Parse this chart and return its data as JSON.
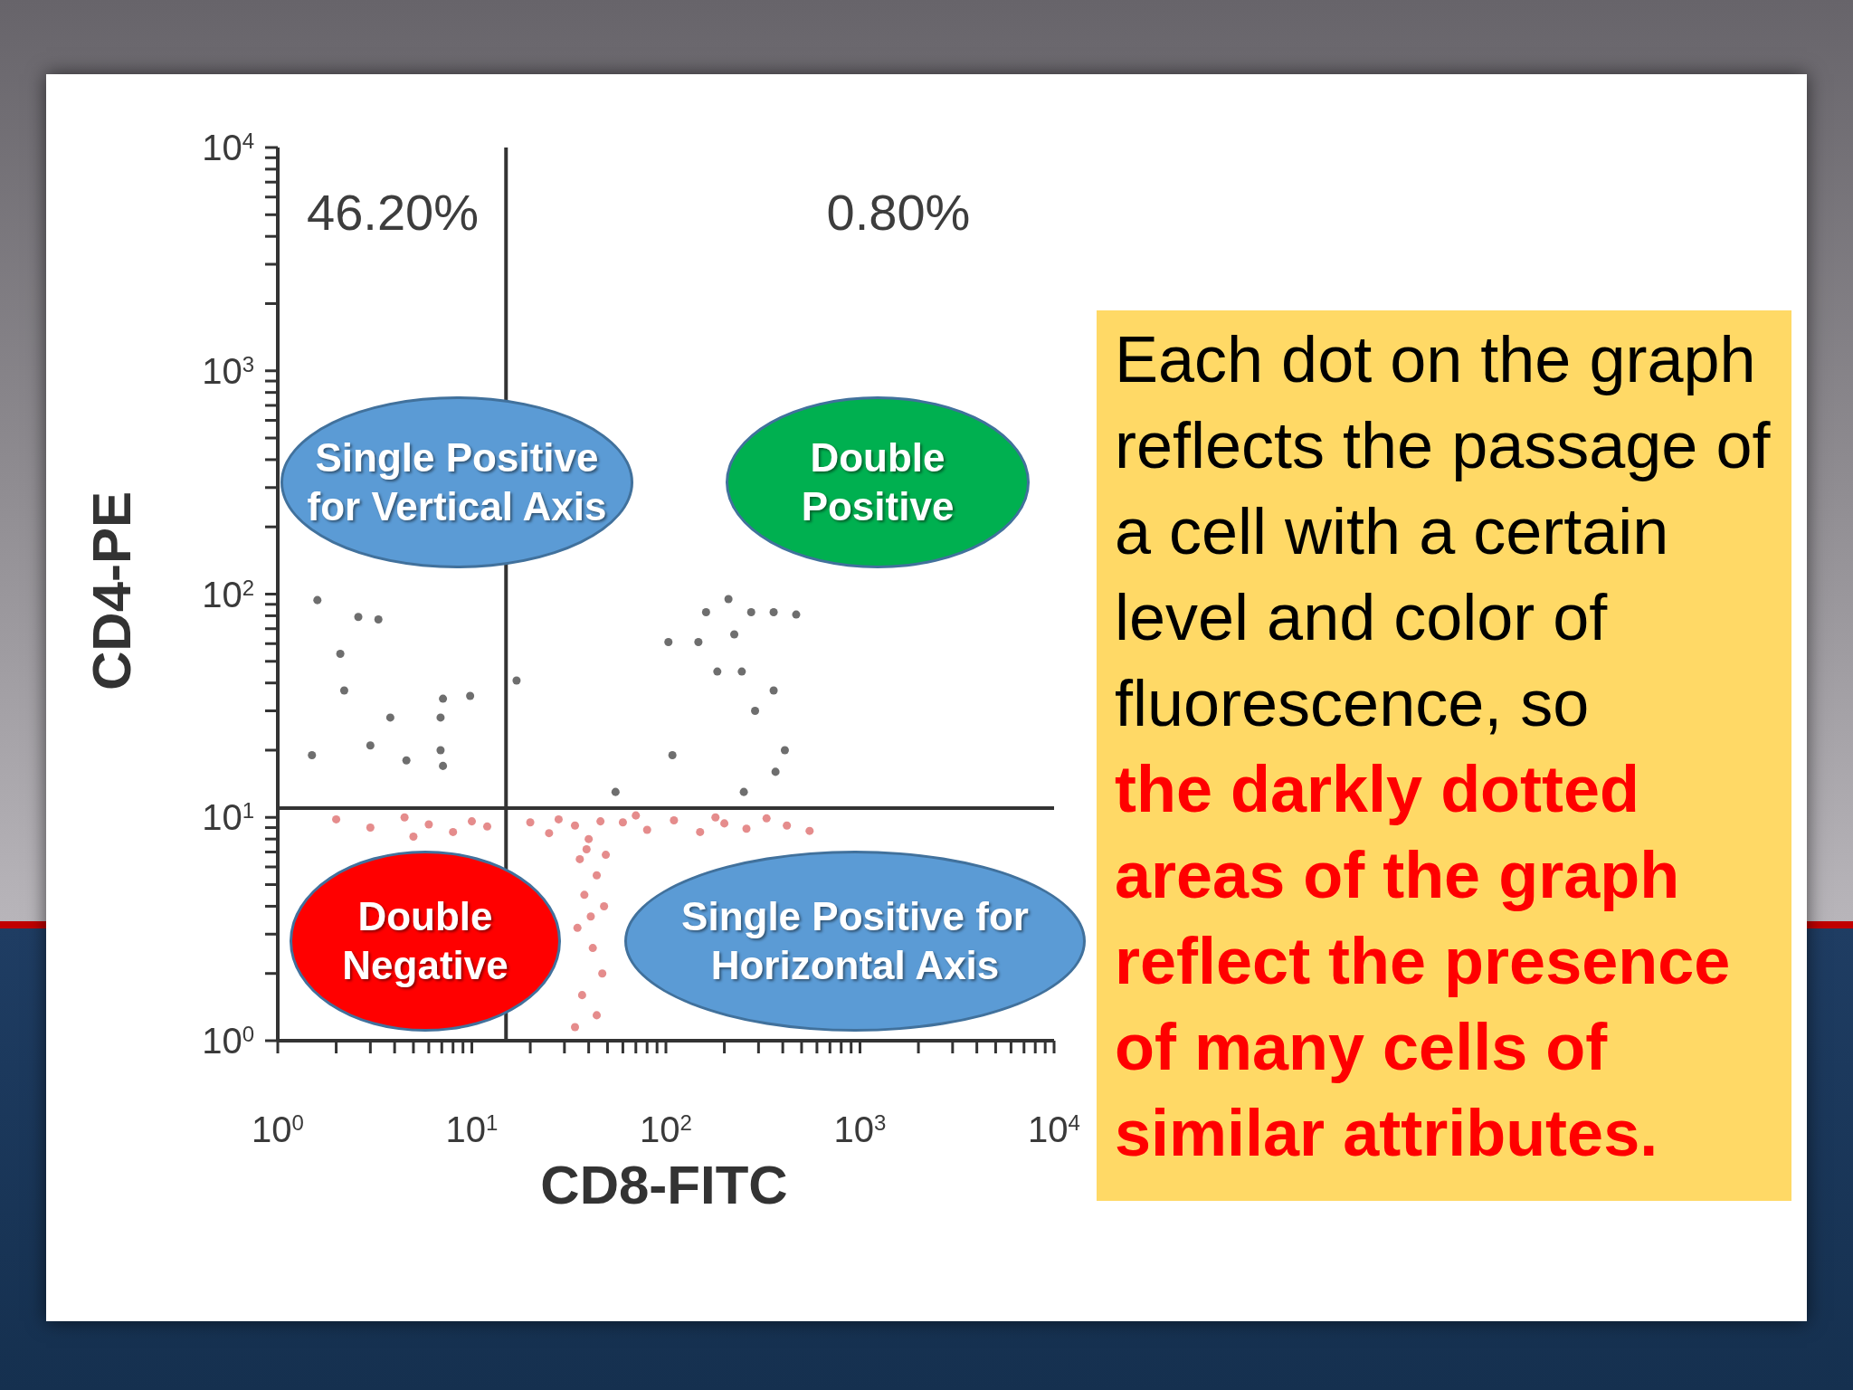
{
  "chart_data": {
    "type": "scatter",
    "xlabel": "CD8-FITC",
    "ylabel": "CD4-PE",
    "log": "xy",
    "xlim": [
      1,
      10000
    ],
    "ylim": [
      1,
      10000
    ],
    "xticks": [
      {
        "value": 1,
        "label": "10$^{0}$"
      },
      {
        "value": 2,
        "label": null
      },
      {
        "value": 3,
        "label": null
      },
      {
        "value": 4,
        "label": null
      },
      {
        "value": 5,
        "label": null
      },
      {
        "value": 6,
        "label": null
      },
      {
        "value": 7,
        "label": null
      },
      {
        "value": 8,
        "label": null
      },
      {
        "value": 9,
        "label": null
      },
      {
        "value": 10,
        "label": "10$^{1}$"
      },
      {
        "value": 20,
        "label": null
      },
      {
        "value": 30,
        "label": null
      },
      {
        "value": 40,
        "label": null
      },
      {
        "value": 50,
        "label": null
      },
      {
        "value": 60,
        "label": null
      },
      {
        "value": 70,
        "label": null
      },
      {
        "value": 80,
        "label": null
      },
      {
        "value": 90,
        "label": null
      },
      {
        "value": 100,
        "label": "10$^{2}$"
      },
      {
        "value": 200,
        "label": null
      },
      {
        "value": 300,
        "label": null
      },
      {
        "value": 400,
        "label": null
      },
      {
        "value": 500,
        "label": null
      },
      {
        "value": 600,
        "label": null
      },
      {
        "value": 700,
        "label": null
      },
      {
        "value": 800,
        "label": null
      },
      {
        "value": 900,
        "label": null
      },
      {
        "value": 1000,
        "label": "10$^{3}$"
      },
      {
        "value": 2000,
        "label": null
      },
      {
        "value": 3000,
        "label": null
      },
      {
        "value": 4000,
        "label": null
      },
      {
        "value": 5000,
        "label": null
      },
      {
        "value": 6000,
        "label": null
      },
      {
        "value": 7000,
        "label": null
      },
      {
        "value": 8000,
        "label": null
      },
      {
        "value": 9000,
        "label": null
      },
      {
        "value": 10000,
        "label": "10$^{4}$"
      }
    ],
    "yticks": [
      {
        "value": 1,
        "label": "10$^{0}$"
      },
      {
        "value": 2,
        "label": null
      },
      {
        "value": 3,
        "label": null
      },
      {
        "value": 4,
        "label": null
      },
      {
        "value": 5,
        "label": null
      },
      {
        "value": 6,
        "label": null
      },
      {
        "value": 7,
        "label": null
      },
      {
        "value": 8,
        "label": null
      },
      {
        "value": 9,
        "label": null
      },
      {
        "value": 10,
        "label": "10$^{1}$"
      },
      {
        "value": 20,
        "label": null
      },
      {
        "value": 30,
        "label": null
      },
      {
        "value": 40,
        "label": null
      },
      {
        "value": 50,
        "label": null
      },
      {
        "value": 60,
        "label": null
      },
      {
        "value": 70,
        "label": null
      },
      {
        "value": 80,
        "label": null
      },
      {
        "value": 90,
        "label": null
      },
      {
        "value": 100,
        "label": "10$^{2}$"
      },
      {
        "value": 200,
        "label": null
      },
      {
        "value": 300,
        "label": null
      },
      {
        "value": 400,
        "label": null
      },
      {
        "value": 500,
        "label": null
      },
      {
        "value": 600,
        "label": null
      },
      {
        "value": 700,
        "label": null
      },
      {
        "value": 800,
        "label": null
      },
      {
        "value": 900,
        "label": null
      },
      {
        "value": 1000,
        "label": "10$^{3}$"
      },
      {
        "value": 2000,
        "label": null
      },
      {
        "value": 3000,
        "label": null
      },
      {
        "value": 4000,
        "label": null
      },
      {
        "value": 5000,
        "label": null
      },
      {
        "value": 6000,
        "label": null
      },
      {
        "value": 7000,
        "label": null
      },
      {
        "value": 8000,
        "label": null
      },
      {
        "value": 9000,
        "label": null
      },
      {
        "value": 10000,
        "label": "10$^{4}$"
      }
    ],
    "marker": "circle",
    "series": [
      {
        "color": "#6e6e6e",
        "x": [
          7.1,
          6.9,
          7.1,
          2.1,
          2.2,
          3.8,
          3.0,
          4.6,
          1.5,
          2.6,
          3.3,
          6.9,
          9.8,
          1.6,
          225,
          288,
          410,
          184,
          246,
          359,
          147,
          103,
          161,
          275,
          359,
          469,
          210,
          108,
          367,
          252,
          55,
          17
        ],
        "values": [
          34,
          20,
          17,
          54,
          37,
          28,
          21,
          18,
          19,
          79,
          77,
          28,
          35,
          94,
          66,
          30,
          20,
          45,
          45,
          37,
          61,
          61,
          83,
          83,
          83,
          81,
          95,
          19,
          16,
          13,
          13,
          41
        ]
      },
      {
        "color": "#e58c8c",
        "x": [
          34,
          40,
          46,
          36,
          44,
          38,
          48,
          35,
          42,
          47,
          37,
          44,
          34,
          39,
          49,
          41,
          20,
          25,
          28,
          60,
          80,
          110,
          150,
          200,
          260,
          330,
          420,
          550,
          70,
          180,
          2,
          3,
          4.5,
          6,
          8,
          10,
          12,
          5
        ],
        "values": [
          9.2,
          8.0,
          9.6,
          6.5,
          5.5,
          4.5,
          4.0,
          3.2,
          2.6,
          2.0,
          1.6,
          1.3,
          1.15,
          7.2,
          6.8,
          3.6,
          9.5,
          8.5,
          9.8,
          9.5,
          8.8,
          9.7,
          8.6,
          9.4,
          8.9,
          9.9,
          9.2,
          8.7,
          10.2,
          10.0,
          9.8,
          9.0,
          10.0,
          9.3,
          8.6,
          9.6,
          9.1,
          8.2
        ]
      }
    ],
    "ref_lines": [
      {
        "axis": "x",
        "value": 15,
        "color": "#333333"
      },
      {
        "axis": "y",
        "value": 11,
        "color": "#333333"
      }
    ],
    "annotations": [
      "46.20%",
      "0.80%",
      "Single Positive for Vertical Axis",
      "Double Positive",
      "Double Negative",
      "Single Positive for Horizontal Axis",
      "Each dot on the graph reflects the passage of a cell with a certain level and color of fluorescence, so",
      "the darkly dotted areas of the graph reflect the presence of many cells of similar attributes."
    ]
  }
}
